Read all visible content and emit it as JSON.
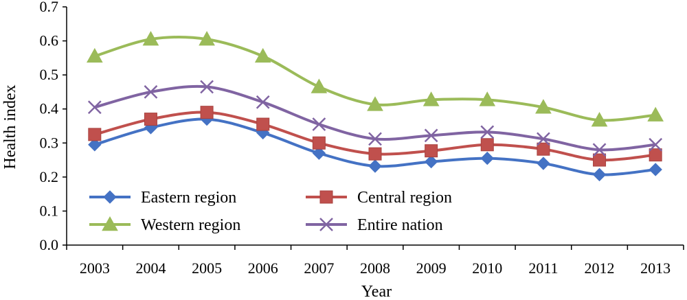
{
  "chart_data": {
    "type": "line",
    "title": "",
    "xlabel": "Year",
    "ylabel": "Health index",
    "categories": [
      "2003",
      "2004",
      "2005",
      "2006",
      "2007",
      "2008",
      "2009",
      "2010",
      "2011",
      "2012",
      "2013"
    ],
    "ylim": [
      0,
      0.7
    ],
    "yticks": [
      "0.0",
      "0.1",
      "0.2",
      "0.3",
      "0.4",
      "0.5",
      "0.6",
      "0.7"
    ],
    "grid": false,
    "legend_placement": "bottom-left",
    "series": [
      {
        "name": "Eastern region",
        "marker": "diamond",
        "color": "#4472c4",
        "values": [
          0.295,
          0.345,
          0.37,
          0.33,
          0.27,
          0.232,
          0.245,
          0.255,
          0.24,
          0.207,
          0.222
        ]
      },
      {
        "name": "Central region",
        "marker": "square",
        "color": "#c0504d",
        "values": [
          0.325,
          0.37,
          0.39,
          0.355,
          0.3,
          0.268,
          0.277,
          0.295,
          0.282,
          0.25,
          0.265
        ]
      },
      {
        "name": "Western region",
        "marker": "triangle",
        "color": "#9bbb59",
        "values": [
          0.555,
          0.605,
          0.605,
          0.555,
          0.465,
          0.413,
          0.427,
          0.427,
          0.405,
          0.367,
          0.382
        ]
      },
      {
        "name": "Entire nation",
        "marker": "x",
        "color": "#8064a2",
        "values": [
          0.405,
          0.45,
          0.465,
          0.42,
          0.355,
          0.312,
          0.322,
          0.332,
          0.312,
          0.28,
          0.295
        ]
      }
    ]
  }
}
